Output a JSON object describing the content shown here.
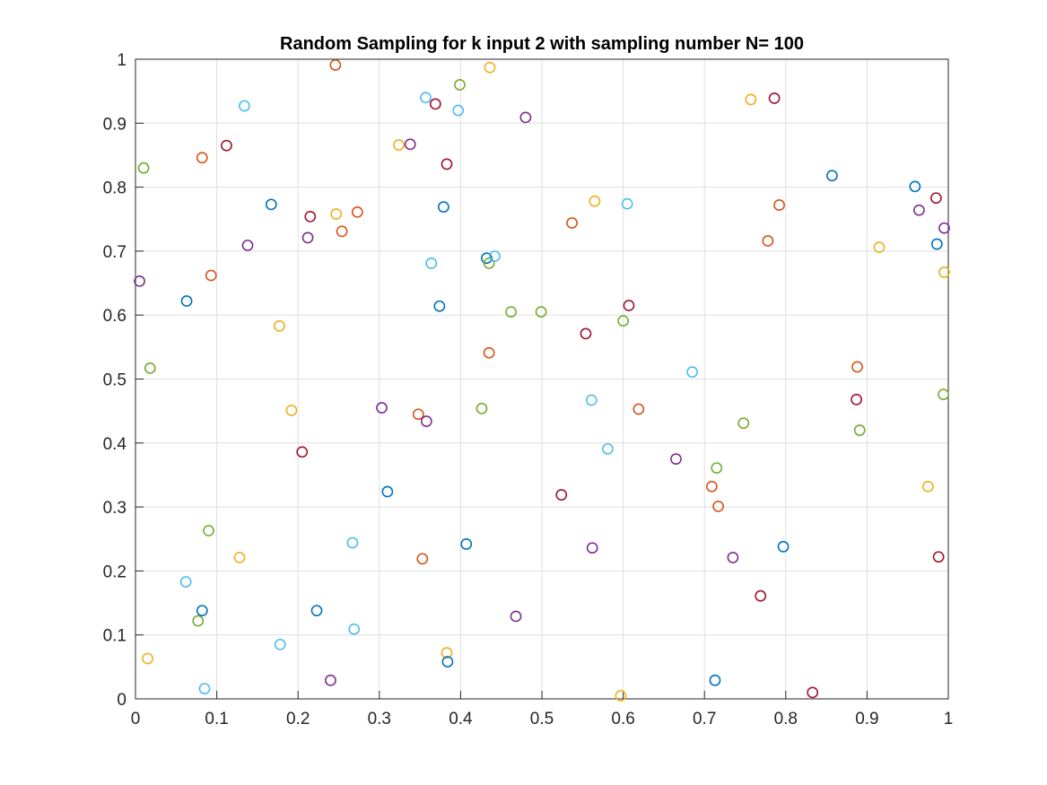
{
  "chart_data": {
    "type": "scatter",
    "title": "Random Sampling for k input 2 with sampling number N= 100",
    "xlabel": "",
    "ylabel": "",
    "xlim": [
      0,
      1
    ],
    "ylim": [
      0,
      1
    ],
    "grid": true,
    "marker": "open-circle",
    "xticks": [
      "0",
      "0.1",
      "0.2",
      "0.3",
      "0.4",
      "0.5",
      "0.6",
      "0.7",
      "0.8",
      "0.9",
      "1"
    ],
    "yticks": [
      "0",
      "0.1",
      "0.2",
      "0.3",
      "0.4",
      "0.5",
      "0.6",
      "0.7",
      "0.8",
      "0.9",
      "1"
    ],
    "colors": {
      "blue": "#0072BD",
      "orange": "#D95319",
      "yellow": "#EDB120",
      "purple": "#7E2F8E",
      "green": "#77AC30",
      "cyan": "#4DBEEE",
      "red": "#A2142F"
    },
    "points": [
      {
        "x": 0.005,
        "y": 0.653,
        "c": "purple"
      },
      {
        "x": 0.01,
        "y": 0.83,
        "c": "green"
      },
      {
        "x": 0.015,
        "y": 0.063,
        "c": "yellow"
      },
      {
        "x": 0.018,
        "y": 0.517,
        "c": "green"
      },
      {
        "x": 0.063,
        "y": 0.622,
        "c": "blue"
      },
      {
        "x": 0.062,
        "y": 0.183,
        "c": "cyan"
      },
      {
        "x": 0.077,
        "y": 0.122,
        "c": "green"
      },
      {
        "x": 0.082,
        "y": 0.138,
        "c": "blue"
      },
      {
        "x": 0.082,
        "y": 0.846,
        "c": "orange"
      },
      {
        "x": 0.085,
        "y": 0.016,
        "c": "cyan"
      },
      {
        "x": 0.09,
        "y": 0.263,
        "c": "green"
      },
      {
        "x": 0.093,
        "y": 0.662,
        "c": "orange"
      },
      {
        "x": 0.112,
        "y": 0.865,
        "c": "red"
      },
      {
        "x": 0.128,
        "y": 0.221,
        "c": "yellow"
      },
      {
        "x": 0.134,
        "y": 0.927,
        "c": "cyan"
      },
      {
        "x": 0.138,
        "y": 0.709,
        "c": "purple"
      },
      {
        "x": 0.167,
        "y": 0.773,
        "c": "blue"
      },
      {
        "x": 0.177,
        "y": 0.583,
        "c": "yellow"
      },
      {
        "x": 0.178,
        "y": 0.085,
        "c": "cyan"
      },
      {
        "x": 0.192,
        "y": 0.451,
        "c": "yellow"
      },
      {
        "x": 0.205,
        "y": 0.386,
        "c": "red"
      },
      {
        "x": 0.212,
        "y": 0.721,
        "c": "purple"
      },
      {
        "x": 0.215,
        "y": 0.754,
        "c": "red"
      },
      {
        "x": 0.223,
        "y": 0.138,
        "c": "blue"
      },
      {
        "x": 0.24,
        "y": 0.029,
        "c": "purple"
      },
      {
        "x": 0.246,
        "y": 0.991,
        "c": "orange"
      },
      {
        "x": 0.247,
        "y": 0.758,
        "c": "yellow"
      },
      {
        "x": 0.254,
        "y": 0.731,
        "c": "orange"
      },
      {
        "x": 0.267,
        "y": 0.244,
        "c": "cyan"
      },
      {
        "x": 0.269,
        "y": 0.109,
        "c": "cyan"
      },
      {
        "x": 0.273,
        "y": 0.761,
        "c": "orange"
      },
      {
        "x": 0.303,
        "y": 0.455,
        "c": "purple"
      },
      {
        "x": 0.31,
        "y": 0.324,
        "c": "blue"
      },
      {
        "x": 0.324,
        "y": 0.866,
        "c": "yellow"
      },
      {
        "x": 0.338,
        "y": 0.867,
        "c": "purple"
      },
      {
        "x": 0.348,
        "y": 0.445,
        "c": "orange"
      },
      {
        "x": 0.353,
        "y": 0.219,
        "c": "orange"
      },
      {
        "x": 0.357,
        "y": 0.94,
        "c": "cyan"
      },
      {
        "x": 0.358,
        "y": 0.434,
        "c": "purple"
      },
      {
        "x": 0.364,
        "y": 0.681,
        "c": "cyan"
      },
      {
        "x": 0.369,
        "y": 0.93,
        "c": "red"
      },
      {
        "x": 0.374,
        "y": 0.614,
        "c": "blue"
      },
      {
        "x": 0.379,
        "y": 0.769,
        "c": "blue"
      },
      {
        "x": 0.383,
        "y": 0.836,
        "c": "red"
      },
      {
        "x": 0.383,
        "y": 0.072,
        "c": "yellow"
      },
      {
        "x": 0.384,
        "y": 0.058,
        "c": "blue"
      },
      {
        "x": 0.397,
        "y": 0.92,
        "c": "cyan"
      },
      {
        "x": 0.399,
        "y": 0.96,
        "c": "green"
      },
      {
        "x": 0.407,
        "y": 0.242,
        "c": "blue"
      },
      {
        "x": 0.426,
        "y": 0.454,
        "c": "green"
      },
      {
        "x": 0.432,
        "y": 0.689,
        "c": "blue"
      },
      {
        "x": 0.435,
        "y": 0.681,
        "c": "green"
      },
      {
        "x": 0.435,
        "y": 0.541,
        "c": "orange"
      },
      {
        "x": 0.436,
        "y": 0.987,
        "c": "yellow"
      },
      {
        "x": 0.442,
        "y": 0.692,
        "c": "cyan"
      },
      {
        "x": 0.462,
        "y": 0.605,
        "c": "green"
      },
      {
        "x": 0.468,
        "y": 0.129,
        "c": "purple"
      },
      {
        "x": 0.48,
        "y": 0.909,
        "c": "purple"
      },
      {
        "x": 0.499,
        "y": 0.605,
        "c": "green"
      },
      {
        "x": 0.524,
        "y": 0.319,
        "c": "red"
      },
      {
        "x": 0.537,
        "y": 0.744,
        "c": "orange"
      },
      {
        "x": 0.554,
        "y": 0.571,
        "c": "red"
      },
      {
        "x": 0.561,
        "y": 0.467,
        "c": "cyan"
      },
      {
        "x": 0.562,
        "y": 0.236,
        "c": "purple"
      },
      {
        "x": 0.565,
        "y": 0.778,
        "c": "yellow"
      },
      {
        "x": 0.581,
        "y": 0.391,
        "c": "cyan"
      },
      {
        "x": 0.597,
        "y": 0.005,
        "c": "yellow"
      },
      {
        "x": 0.6,
        "y": 0.591,
        "c": "green"
      },
      {
        "x": 0.605,
        "y": 0.774,
        "c": "cyan"
      },
      {
        "x": 0.607,
        "y": 0.615,
        "c": "red"
      },
      {
        "x": 0.619,
        "y": 0.453,
        "c": "orange"
      },
      {
        "x": 0.665,
        "y": 0.375,
        "c": "purple"
      },
      {
        "x": 0.685,
        "y": 0.511,
        "c": "cyan"
      },
      {
        "x": 0.709,
        "y": 0.332,
        "c": "orange"
      },
      {
        "x": 0.713,
        "y": 0.029,
        "c": "blue"
      },
      {
        "x": 0.715,
        "y": 0.361,
        "c": "green"
      },
      {
        "x": 0.717,
        "y": 0.301,
        "c": "orange"
      },
      {
        "x": 0.735,
        "y": 0.221,
        "c": "purple"
      },
      {
        "x": 0.748,
        "y": 0.431,
        "c": "green"
      },
      {
        "x": 0.757,
        "y": 0.937,
        "c": "yellow"
      },
      {
        "x": 0.769,
        "y": 0.161,
        "c": "red"
      },
      {
        "x": 0.778,
        "y": 0.716,
        "c": "orange"
      },
      {
        "x": 0.786,
        "y": 0.939,
        "c": "red"
      },
      {
        "x": 0.792,
        "y": 0.772,
        "c": "orange"
      },
      {
        "x": 0.797,
        "y": 0.238,
        "c": "blue"
      },
      {
        "x": 0.833,
        "y": 0.01,
        "c": "red"
      },
      {
        "x": 0.857,
        "y": 0.818,
        "c": "blue"
      },
      {
        "x": 0.887,
        "y": 0.468,
        "c": "red"
      },
      {
        "x": 0.888,
        "y": 0.519,
        "c": "orange"
      },
      {
        "x": 0.891,
        "y": 0.42,
        "c": "green"
      },
      {
        "x": 0.915,
        "y": 0.706,
        "c": "yellow"
      },
      {
        "x": 0.959,
        "y": 0.801,
        "c": "blue"
      },
      {
        "x": 0.964,
        "y": 0.764,
        "c": "purple"
      },
      {
        "x": 0.975,
        "y": 0.332,
        "c": "yellow"
      },
      {
        "x": 0.985,
        "y": 0.783,
        "c": "red"
      },
      {
        "x": 0.986,
        "y": 0.711,
        "c": "blue"
      },
      {
        "x": 0.988,
        "y": 0.222,
        "c": "red"
      },
      {
        "x": 0.994,
        "y": 0.476,
        "c": "green"
      },
      {
        "x": 0.995,
        "y": 0.667,
        "c": "yellow"
      },
      {
        "x": 0.995,
        "y": 0.736,
        "c": "purple"
      }
    ]
  }
}
